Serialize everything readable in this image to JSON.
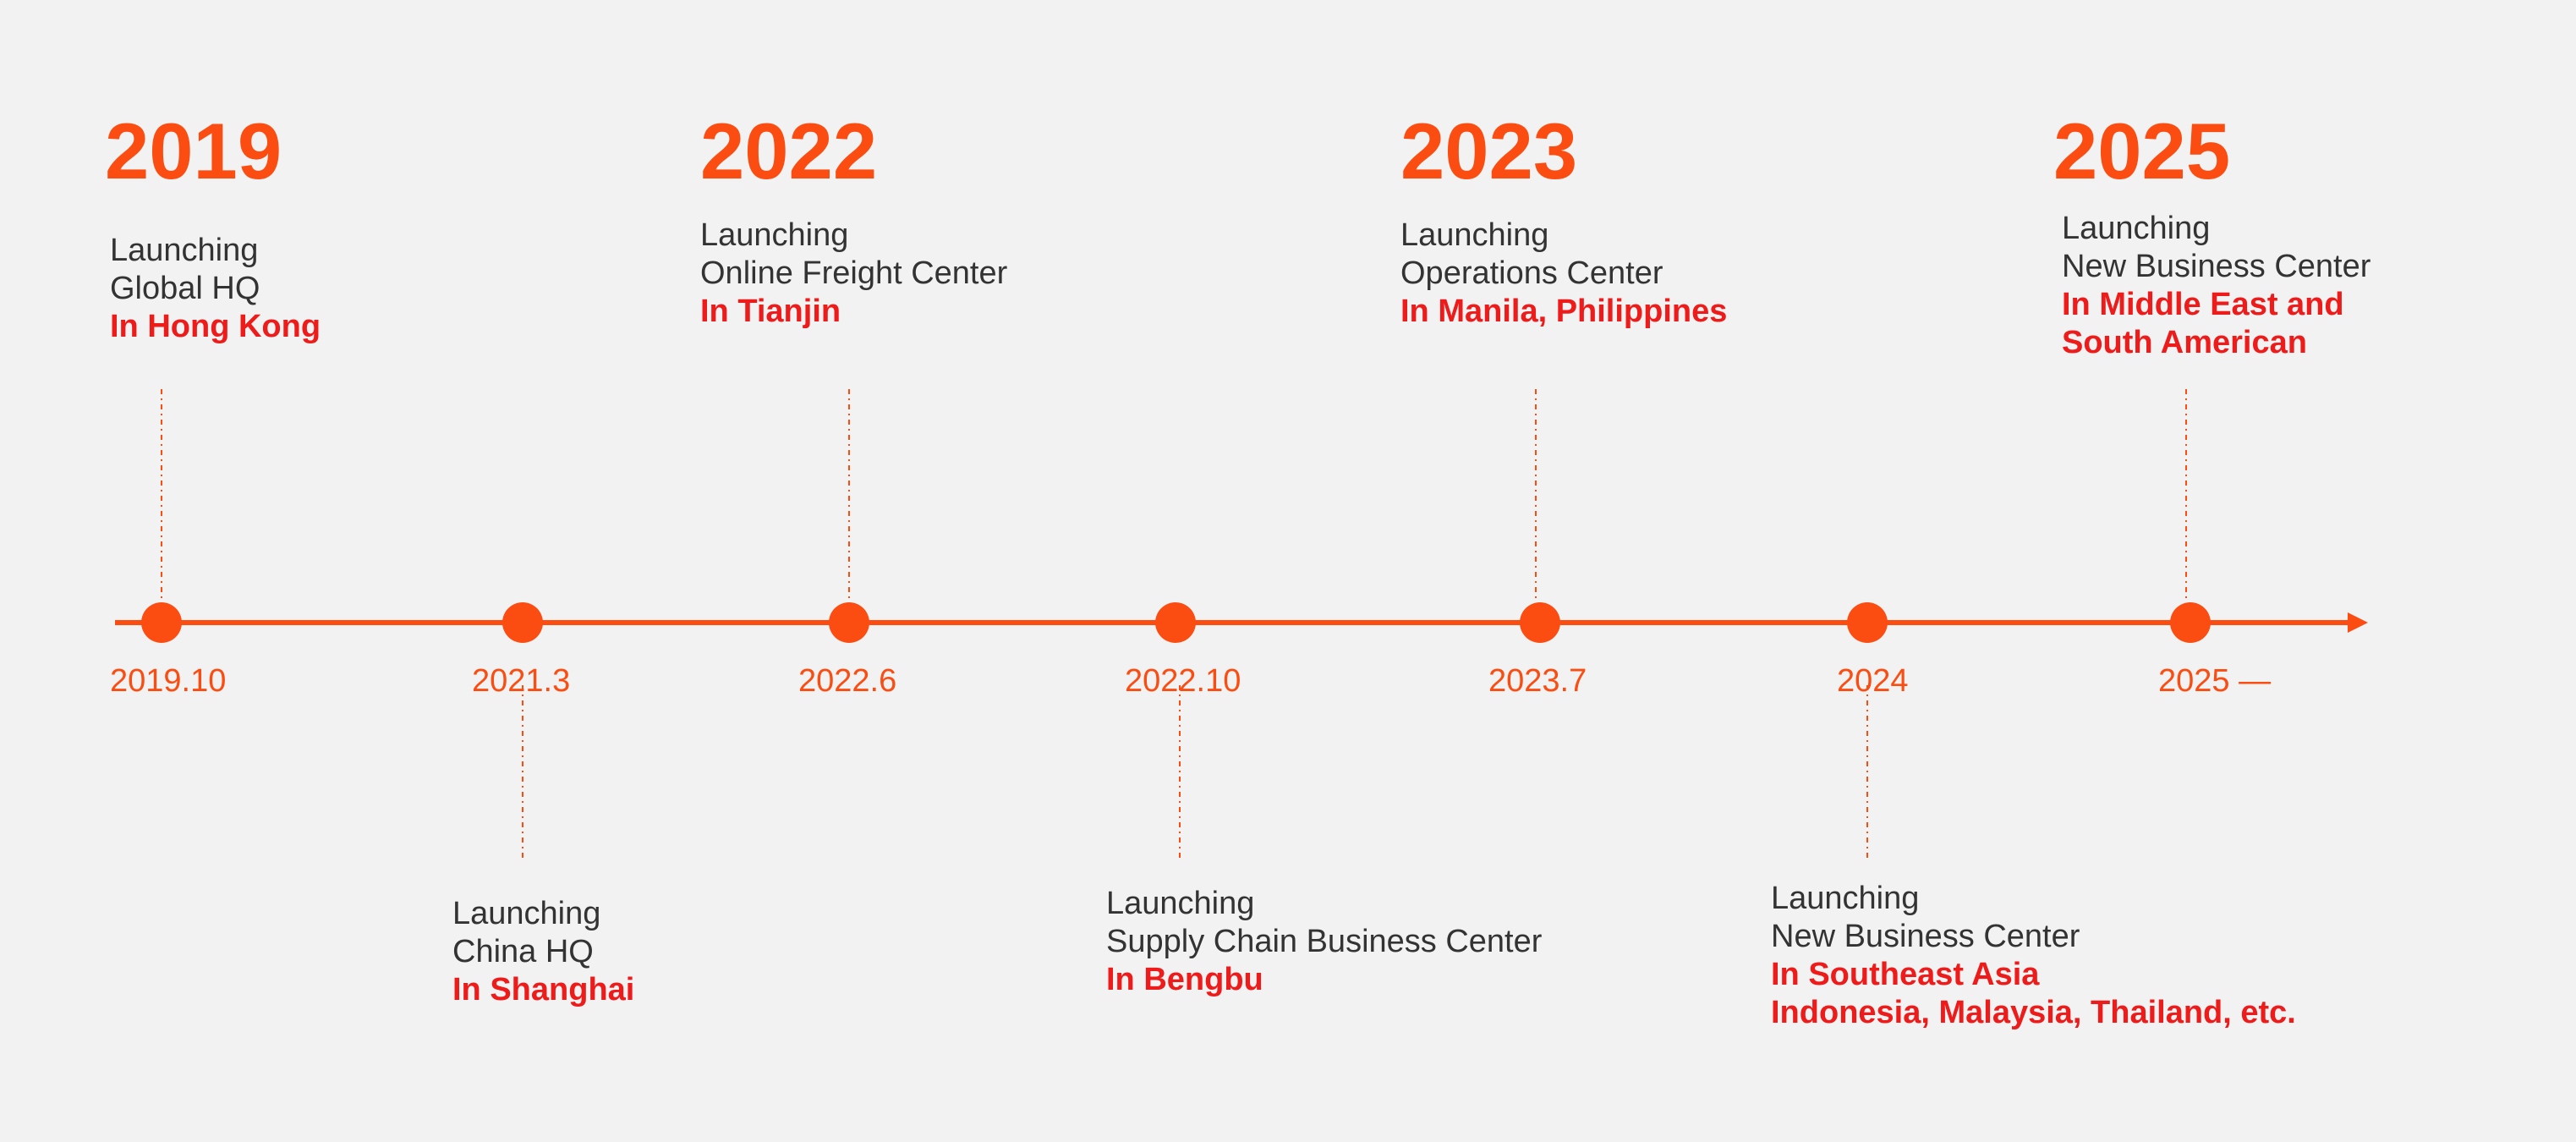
{
  "colors": {
    "accent": "#fb4d12",
    "highlight": "#ee1b1b",
    "text": "#333333",
    "background": "#f2f2f2"
  },
  "years": [
    {
      "label": "2019"
    },
    {
      "label": "2022"
    },
    {
      "label": "2023"
    },
    {
      "label": "2025"
    }
  ],
  "milestones": [
    {
      "date": "2019.10",
      "line1": "Launching",
      "line2": "Global HQ",
      "location": "In Hong Kong",
      "location2": "",
      "side": "above"
    },
    {
      "date": "2021.3",
      "line1": "Launching",
      "line2": "China HQ",
      "location": "In Shanghai",
      "location2": "",
      "side": "below"
    },
    {
      "date": "2022.6",
      "line1": "Launching",
      "line2": "Online Freight Center",
      "location": "In Tianjin",
      "location2": "",
      "side": "above"
    },
    {
      "date": "2022.10",
      "line1": "Launching",
      "line2": "Supply Chain Business Center",
      "location": "In Bengbu",
      "location2": "",
      "side": "below"
    },
    {
      "date": "2023.7",
      "line1": "Launching",
      "line2": "Operations Center",
      "location": "In Manila, Philippines",
      "location2": "",
      "side": "above"
    },
    {
      "date": "2024",
      "line1": "Launching",
      "line2": "New Business Center",
      "location": "In Southeast Asia",
      "location2": "Indonesia, Malaysia, Thailand, etc.",
      "side": "below"
    },
    {
      "date": "2025 —",
      "line1": "Launching",
      "line2": "New Business Center",
      "location": "In Middle East and",
      "location2": "South American",
      "side": "above"
    }
  ]
}
